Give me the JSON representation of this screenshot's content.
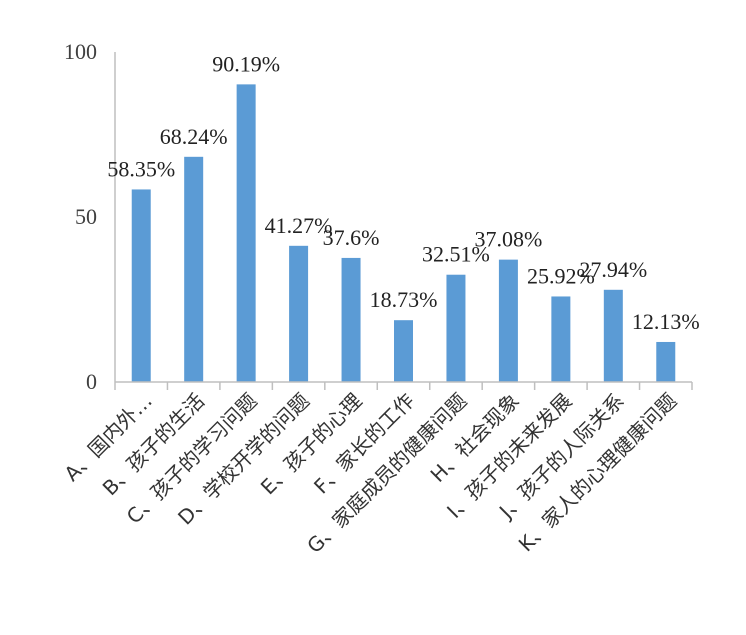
{
  "chart_data": {
    "type": "bar",
    "categories": [
      "A、国内外…",
      "B、孩子的生活",
      "C、孩子的学习问题",
      "D、学校开学的问题",
      "E、孩子的心理",
      "F、家长的工作",
      "G、家庭成员的健康问题",
      "H、社会现象",
      "I、孩子的未来发展",
      "J、孩子的人际关系",
      "K、家人的心理健康问题"
    ],
    "values": [
      58.35,
      68.24,
      90.19,
      41.27,
      37.6,
      18.73,
      32.51,
      37.08,
      25.92,
      27.94,
      12.13
    ],
    "data_labels": [
      "58.35%",
      "68.24%",
      "90.19%",
      "41.27%",
      "37.6%",
      "18.73%",
      "32.51%",
      "37.08%",
      "25.92%",
      "27.94%",
      "12.13%"
    ],
    "y_ticks": [
      "0",
      "50",
      "100"
    ],
    "ylim": [
      0,
      100
    ],
    "title": "",
    "xlabel": "",
    "ylabel": "",
    "grid": false,
    "legend": "none",
    "bar_color": "#5b9bd5"
  }
}
